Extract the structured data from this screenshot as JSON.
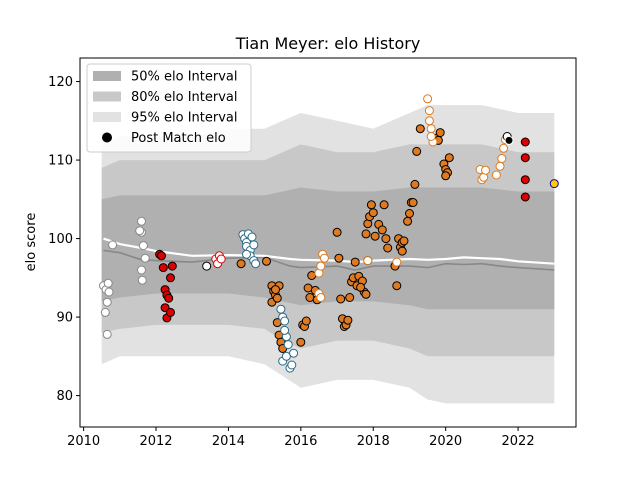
{
  "chart_data": {
    "type": "scatter",
    "title": "Tian Meyer: elo History",
    "xlabel": "",
    "ylabel": "elo score",
    "xlim": [
      2009.9,
      2023.6
    ],
    "ylim": [
      76,
      123
    ],
    "x_ticks": [
      2010,
      2012,
      2014,
      2016,
      2018,
      2020,
      2022
    ],
    "x_tick_labels": [
      "2010",
      "2012",
      "2014",
      "2016",
      "2018",
      "2020",
      "2022"
    ],
    "y_ticks": [
      80,
      90,
      100,
      110,
      120
    ],
    "y_tick_labels": [
      "80",
      "90",
      "100",
      "110",
      "120"
    ],
    "grid": false,
    "legend": {
      "placement": "top-left",
      "entries": [
        {
          "label": "50% elo Interval",
          "color": "#b0b0b0",
          "kind": "band"
        },
        {
          "label": "80% elo Interval",
          "color": "#c8c8c8",
          "kind": "band"
        },
        {
          "label": "95% elo Interval",
          "color": "#e2e2e2",
          "kind": "band"
        },
        {
          "label": "Post Match elo",
          "color": "#000000",
          "kind": "dot"
        }
      ]
    },
    "colors": {
      "band95": "#e2e2e2",
      "band80": "#c8c8c8",
      "band50": "#b0b0b0",
      "mean_line": "#888888",
      "rating_line": "#ffffff"
    },
    "bands": {
      "x": [
        2010.5,
        2011.0,
        2012.0,
        2013.0,
        2014.0,
        2015.0,
        2015.5,
        2016.0,
        2017.0,
        2018.0,
        2019.0,
        2019.5,
        2020.0,
        2021.0,
        2022.0,
        2023.0
      ],
      "p95_low": [
        84,
        85,
        85,
        85,
        85,
        84,
        82.5,
        81,
        82,
        82,
        81,
        79.5,
        79,
        79,
        79,
        79
      ],
      "p95_high": [
        112,
        113,
        113,
        113,
        114,
        114,
        115,
        116,
        115,
        114,
        116,
        117,
        117,
        117,
        116,
        116
      ],
      "p80_low": [
        88,
        88.5,
        89,
        89,
        89,
        88.5,
        87,
        86,
        87,
        87,
        86,
        85,
        85,
        85,
        85,
        85
      ],
      "p80_high": [
        109,
        110,
        110,
        110,
        110,
        110,
        111,
        112,
        111,
        111,
        112,
        112,
        112,
        112,
        111,
        111
      ],
      "p50_low": [
        92,
        92.5,
        93,
        93,
        93,
        92.5,
        92,
        91.5,
        92,
        92,
        91.5,
        91,
        91,
        91,
        91,
        91
      ],
      "p50_high": [
        105,
        105.5,
        105.5,
        105.5,
        105.5,
        105.5,
        106,
        106.5,
        106,
        106,
        106.5,
        106.5,
        106.5,
        106.5,
        106,
        106
      ]
    },
    "mean_line": {
      "x": [
        2010.55,
        2011.0,
        2011.6,
        2012.0,
        2013.0,
        2014.0,
        2015.0,
        2015.7,
        2016.0,
        2017.0,
        2017.5,
        2018.0,
        2019.0,
        2019.5,
        2020.0,
        2020.5,
        2021.0,
        2021.5,
        2022.0,
        2023.0
      ],
      "y": [
        98.5,
        98.2,
        97.3,
        97.2,
        97.0,
        97.5,
        97.6,
        96.5,
        96.3,
        96.5,
        96.0,
        96.5,
        96.5,
        96.3,
        96.8,
        96.7,
        96.8,
        96.5,
        96.3,
        96.0
      ]
    },
    "rating_line": {
      "x": [
        2010.55,
        2011.0,
        2011.6,
        2012.0,
        2013.0,
        2014.0,
        2015.0,
        2015.7,
        2016.0,
        2017.0,
        2017.5,
        2018.0,
        2019.0,
        2019.5,
        2020.0,
        2020.5,
        2021.0,
        2021.5,
        2022.0,
        2023.0
      ],
      "y": [
        100.0,
        99.3,
        98.8,
        98.4,
        97.8,
        97.9,
        97.8,
        97.4,
        97.3,
        97.2,
        97.0,
        97.2,
        97.4,
        97.3,
        97.4,
        97.6,
        97.5,
        97.4,
        97.1,
        96.8
      ]
    },
    "series": [
      {
        "fill": "#ffffff",
        "edge": "#888888",
        "points": [
          [
            2010.55,
            94.0
          ],
          [
            2010.62,
            93.5
          ],
          [
            2010.68,
            94.3
          ],
          [
            2010.6,
            90.6
          ],
          [
            2010.65,
            91.9
          ],
          [
            2010.7,
            93.2
          ],
          [
            2010.65,
            87.8
          ],
          [
            2010.8,
            99.2
          ],
          [
            2011.6,
            102.2
          ],
          [
            2011.6,
            100.8
          ],
          [
            2011.55,
            101.0
          ],
          [
            2011.65,
            99.1
          ],
          [
            2011.6,
            96.0
          ],
          [
            2011.62,
            94.7
          ],
          [
            2011.7,
            97.5
          ]
        ]
      },
      {
        "fill": "#dd0000",
        "edge": "#000000",
        "points": [
          [
            2012.1,
            98.0
          ],
          [
            2012.15,
            97.8
          ],
          [
            2012.2,
            96.3
          ],
          [
            2012.25,
            93.5
          ],
          [
            2012.3,
            92.8
          ],
          [
            2012.25,
            91.2
          ],
          [
            2012.35,
            92.4
          ],
          [
            2012.3,
            89.9
          ],
          [
            2012.4,
            90.6
          ],
          [
            2012.45,
            96.5
          ],
          [
            2012.4,
            95.0
          ]
        ]
      },
      {
        "fill": "#ffffff",
        "edge": "#000000",
        "points": [
          [
            2013.4,
            96.5
          ]
        ]
      },
      {
        "fill": "#ffffff",
        "edge": "#dd0000",
        "points": [
          [
            2013.65,
            97.4
          ],
          [
            2013.7,
            96.8
          ],
          [
            2013.75,
            97.8
          ],
          [
            2013.8,
            97.4
          ]
        ]
      },
      {
        "fill": "#ffffff",
        "edge": "#2a6a8a",
        "points": [
          [
            2014.4,
            100.5
          ],
          [
            2014.45,
            100.0
          ],
          [
            2014.5,
            99.5
          ],
          [
            2014.55,
            100.6
          ],
          [
            2014.5,
            99.0
          ],
          [
            2014.6,
            98.5
          ],
          [
            2014.65,
            100.2
          ],
          [
            2014.7,
            99.2
          ],
          [
            2014.6,
            97.8
          ],
          [
            2014.7,
            97.2
          ],
          [
            2014.75,
            96.8
          ],
          [
            2014.5,
            98.0
          ]
        ]
      },
      {
        "fill": "#e07a20",
        "edge": "#000000",
        "points": [
          [
            2014.35,
            96.8
          ],
          [
            2015.05,
            97.1
          ]
        ]
      },
      {
        "fill": "#e07a20",
        "edge": "#000000",
        "points": [
          [
            2015.2,
            94.0
          ],
          [
            2015.25,
            93.3
          ],
          [
            2015.3,
            92.8
          ],
          [
            2015.2,
            91.9
          ],
          [
            2015.35,
            92.4
          ],
          [
            2015.4,
            94.0
          ],
          [
            2015.3,
            93.5
          ],
          [
            2015.35,
            89.3
          ],
          [
            2015.4,
            87.7
          ],
          [
            2015.45,
            86.8
          ],
          [
            2015.5,
            86.0
          ]
        ]
      },
      {
        "fill": "#ffffff",
        "edge": "#2a6a8a",
        "points": [
          [
            2015.45,
            91.0
          ],
          [
            2015.5,
            90.0
          ],
          [
            2015.55,
            89.5
          ],
          [
            2015.6,
            87.5
          ],
          [
            2015.65,
            86.5
          ],
          [
            2015.5,
            84.4
          ],
          [
            2015.6,
            85.0
          ],
          [
            2015.7,
            83.5
          ],
          [
            2015.75,
            83.9
          ],
          [
            2015.8,
            85.4
          ],
          [
            2015.55,
            88.3
          ]
        ]
      },
      {
        "fill": "#e07a20",
        "edge": "#000000",
        "points": [
          [
            2016.0,
            86.8
          ],
          [
            2016.05,
            89.0
          ],
          [
            2016.1,
            88.8
          ],
          [
            2016.15,
            89.5
          ],
          [
            2016.2,
            93.7
          ],
          [
            2016.25,
            92.5
          ],
          [
            2016.3,
            95.3
          ],
          [
            2016.4,
            93.4
          ],
          [
            2016.45,
            92.2
          ]
        ]
      },
      {
        "fill": "#ffffff",
        "edge": "#e07a20",
        "points": [
          [
            2016.5,
            95.6
          ],
          [
            2016.55,
            96.5
          ],
          [
            2016.6,
            98.0
          ],
          [
            2016.65,
            97.5
          ],
          [
            2016.5,
            93.0
          ],
          [
            2016.55,
            92.5
          ]
        ]
      },
      {
        "fill": "#e07a20",
        "edge": "#000000",
        "points": [
          [
            2017.0,
            100.8
          ],
          [
            2017.05,
            97.5
          ],
          [
            2017.1,
            92.3
          ],
          [
            2017.15,
            89.8
          ],
          [
            2017.2,
            88.8
          ],
          [
            2017.25,
            89.0
          ],
          [
            2017.3,
            89.6
          ],
          [
            2017.35,
            92.5
          ],
          [
            2017.4,
            94.5
          ],
          [
            2017.45,
            95.0
          ],
          [
            2017.5,
            97.0
          ],
          [
            2017.55,
            94.0
          ],
          [
            2017.6,
            95.2
          ],
          [
            2017.7,
            94.6
          ],
          [
            2017.75,
            93.2
          ],
          [
            2017.8,
            92.9
          ],
          [
            2017.65,
            93.8
          ],
          [
            2017.85,
            97.2
          ],
          [
            2017.8,
            100.6
          ],
          [
            2017.85,
            101.9
          ],
          [
            2017.9,
            102.8
          ],
          [
            2017.95,
            104.3
          ],
          [
            2018.0,
            103.3
          ],
          [
            2018.05,
            100.3
          ],
          [
            2018.15,
            101.8
          ],
          [
            2018.25,
            101.1
          ],
          [
            2018.3,
            104.3
          ],
          [
            2018.35,
            100.0
          ],
          [
            2018.4,
            98.8
          ],
          [
            2018.6,
            96.5
          ],
          [
            2018.65,
            94.0
          ],
          [
            2018.7,
            100.0
          ],
          [
            2018.75,
            98.9
          ],
          [
            2018.8,
            99.5
          ],
          [
            2018.85,
            99.7
          ],
          [
            2018.8,
            98.4
          ],
          [
            2018.95,
            102.2
          ],
          [
            2019.0,
            103.2
          ],
          [
            2019.05,
            104.6
          ],
          [
            2019.1,
            104.6
          ],
          [
            2019.15,
            106.9
          ],
          [
            2019.2,
            111.1
          ],
          [
            2019.3,
            114.0
          ],
          [
            2019.75,
            112.8
          ],
          [
            2019.8,
            112.5
          ],
          [
            2019.85,
            113.5
          ]
        ]
      },
      {
        "fill": "#ffffff",
        "edge": "#e07a20",
        "points": [
          [
            2017.85,
            97.2
          ],
          [
            2018.65,
            97.0
          ],
          [
            2019.5,
            117.8
          ],
          [
            2019.55,
            115.0
          ],
          [
            2019.6,
            114.0
          ],
          [
            2019.65,
            112.3
          ],
          [
            2019.6,
            113.0
          ],
          [
            2019.55,
            116.3
          ]
        ]
      },
      {
        "fill": "#e07a20",
        "edge": "#000000",
        "points": [
          [
            2019.95,
            109.5
          ],
          [
            2020.0,
            108.8
          ],
          [
            2020.05,
            108.4
          ],
          [
            2020.1,
            110.3
          ],
          [
            2020.0,
            108.0
          ]
        ]
      },
      {
        "fill": "#ffffff",
        "edge": "#e07a20",
        "points": [
          [
            2020.95,
            108.8
          ],
          [
            2021.0,
            107.5
          ],
          [
            2021.05,
            107.8
          ],
          [
            2021.1,
            108.7
          ],
          [
            2021.4,
            108.1
          ],
          [
            2021.5,
            109.2
          ],
          [
            2021.55,
            110.2
          ],
          [
            2021.6,
            111.5
          ],
          [
            2021.65,
            112.6
          ]
        ]
      },
      {
        "fill": "#ffffff",
        "edge": "#000000",
        "points": [
          [
            2021.7,
            113.0
          ]
        ]
      },
      {
        "fill": "#000000",
        "edge": "#ffffff",
        "points": [
          [
            2021.75,
            112.5
          ]
        ]
      },
      {
        "fill": "#dd0000",
        "edge": "#000000",
        "points": [
          [
            2022.2,
            112.3
          ],
          [
            2022.2,
            110.3
          ],
          [
            2022.2,
            107.5
          ],
          [
            2022.2,
            105.3
          ]
        ]
      },
      {
        "fill": "#ffcc00",
        "edge": "#0000aa",
        "points": [
          [
            2023.0,
            107.0
          ]
        ]
      }
    ]
  }
}
